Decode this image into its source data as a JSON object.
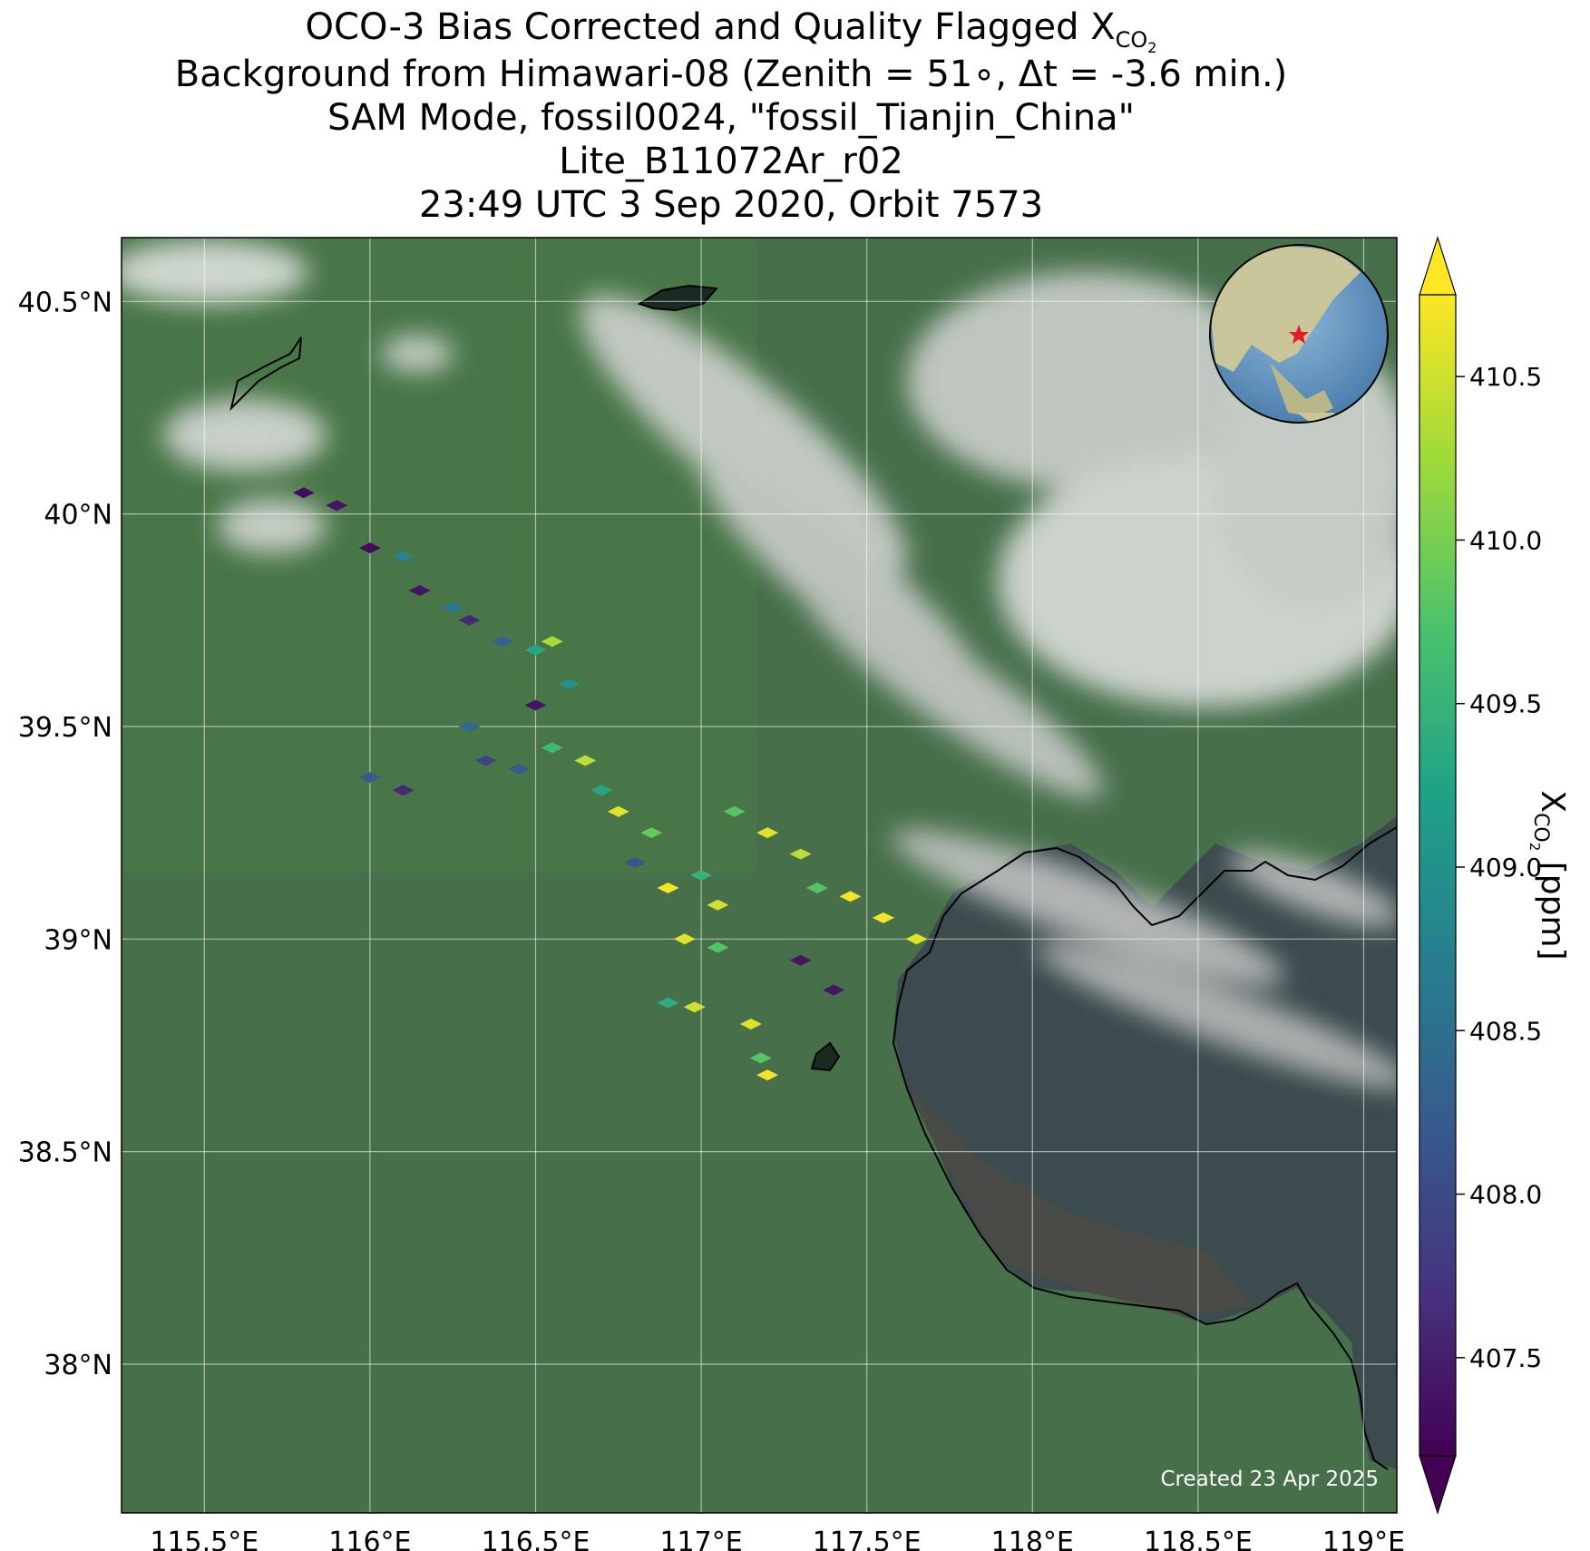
{
  "title": {
    "line1_main": "OCO-3 Bias Corrected and Quality Flagged X",
    "line1_sub": "CO",
    "line1_sub2": "2",
    "line2": "Background from Himawari-08 (Zenith = 51∘, Δt = -3.6 min.)",
    "line3": "SAM Mode, fossil0024, \"fossil_Tianjin_China\"",
    "line4": "Lite_B11072Ar_r02",
    "line5": "23:49 UTC 3 Sep 2020, Orbit 7573"
  },
  "map": {
    "lon_range": [
      115.25,
      119.1
    ],
    "lat_range": [
      37.65,
      40.65
    ],
    "x_ticks": [
      "115.5°E",
      "116°E",
      "116.5°E",
      "117°E",
      "117.5°E",
      "118°E",
      "118.5°E",
      "119°E"
    ],
    "x_tick_values": [
      115.5,
      116.0,
      116.5,
      117.0,
      117.5,
      118.0,
      118.5,
      119.0
    ],
    "y_ticks": [
      "40.5°N",
      "40°N",
      "39.5°N",
      "39°N",
      "38.5°N",
      "38°N"
    ],
    "y_tick_values": [
      40.5,
      40.0,
      39.5,
      39.0,
      38.5,
      38.0
    ],
    "credit": "Created 23 Apr 2025",
    "inset_marker": "red-star",
    "colors": {
      "land": "#3f6a3a",
      "sea": "#3a4a4c",
      "cloud": "#e6e6e6",
      "coast": "#000000"
    }
  },
  "colorbar": {
    "label_main": "X",
    "label_sub": "CO",
    "label_sub2": "2",
    "label_unit": " [ppm]",
    "range": [
      407.2,
      410.75
    ],
    "ticks": [
      "407.5",
      "408.0",
      "408.5",
      "409.0",
      "409.5",
      "410.0",
      "410.5"
    ],
    "tick_values": [
      407.5,
      408.0,
      408.5,
      409.0,
      409.5,
      410.0,
      410.5
    ],
    "colormap": "viridis",
    "extend": "both"
  },
  "chart_data": {
    "type": "scatter",
    "title": "OCO-3 Bias Corrected and Quality Flagged XCO2",
    "xlabel": "",
    "ylabel": "",
    "xlim": [
      115.25,
      119.1
    ],
    "ylim": [
      37.65,
      40.65
    ],
    "color_label": "XCO2 [ppm]",
    "color_range": [
      407.2,
      410.75
    ],
    "points": [
      {
        "lon": 115.8,
        "lat": 40.05,
        "xco2": 407.3
      },
      {
        "lon": 115.9,
        "lat": 40.02,
        "xco2": 407.4
      },
      {
        "lon": 116.0,
        "lat": 39.92,
        "xco2": 407.3
      },
      {
        "lon": 116.1,
        "lat": 39.9,
        "xco2": 408.8
      },
      {
        "lon": 116.15,
        "lat": 39.82,
        "xco2": 407.4
      },
      {
        "lon": 116.25,
        "lat": 39.78,
        "xco2": 408.6
      },
      {
        "lon": 116.3,
        "lat": 39.75,
        "xco2": 407.6
      },
      {
        "lon": 116.4,
        "lat": 39.7,
        "xco2": 408.3
      },
      {
        "lon": 116.5,
        "lat": 39.68,
        "xco2": 409.3
      },
      {
        "lon": 116.55,
        "lat": 39.7,
        "xco2": 410.3
      },
      {
        "lon": 116.6,
        "lat": 39.6,
        "xco2": 409.0
      },
      {
        "lon": 116.5,
        "lat": 39.55,
        "xco2": 407.4
      },
      {
        "lon": 116.3,
        "lat": 39.5,
        "xco2": 408.4
      },
      {
        "lon": 116.35,
        "lat": 39.42,
        "xco2": 407.9
      },
      {
        "lon": 116.45,
        "lat": 39.4,
        "xco2": 408.2
      },
      {
        "lon": 116.55,
        "lat": 39.45,
        "xco2": 409.6
      },
      {
        "lon": 116.65,
        "lat": 39.42,
        "xco2": 410.4
      },
      {
        "lon": 116.7,
        "lat": 39.35,
        "xco2": 409.3
      },
      {
        "lon": 116.75,
        "lat": 39.3,
        "xco2": 410.6
      },
      {
        "lon": 116.85,
        "lat": 39.25,
        "xco2": 409.9
      },
      {
        "lon": 116.8,
        "lat": 39.18,
        "xco2": 408.1
      },
      {
        "lon": 116.9,
        "lat": 39.12,
        "xco2": 410.7
      },
      {
        "lon": 117.0,
        "lat": 39.15,
        "xco2": 409.5
      },
      {
        "lon": 117.05,
        "lat": 39.08,
        "xco2": 410.5
      },
      {
        "lon": 116.95,
        "lat": 39.0,
        "xco2": 410.6
      },
      {
        "lon": 117.05,
        "lat": 38.98,
        "xco2": 409.8
      },
      {
        "lon": 117.1,
        "lat": 39.3,
        "xco2": 409.8
      },
      {
        "lon": 117.2,
        "lat": 39.25,
        "xco2": 410.6
      },
      {
        "lon": 117.3,
        "lat": 39.2,
        "xco2": 410.4
      },
      {
        "lon": 117.35,
        "lat": 39.12,
        "xco2": 409.8
      },
      {
        "lon": 117.45,
        "lat": 39.1,
        "xco2": 410.7
      },
      {
        "lon": 117.55,
        "lat": 39.05,
        "xco2": 410.7
      },
      {
        "lon": 117.65,
        "lat": 39.0,
        "xco2": 410.6
      },
      {
        "lon": 117.3,
        "lat": 38.95,
        "xco2": 407.4
      },
      {
        "lon": 117.4,
        "lat": 38.88,
        "xco2": 407.4
      },
      {
        "lon": 116.9,
        "lat": 38.85,
        "xco2": 409.4
      },
      {
        "lon": 116.98,
        "lat": 38.84,
        "xco2": 410.5
      },
      {
        "lon": 117.15,
        "lat": 38.8,
        "xco2": 410.6
      },
      {
        "lon": 117.18,
        "lat": 38.72,
        "xco2": 409.8
      },
      {
        "lon": 117.2,
        "lat": 38.68,
        "xco2": 410.7
      },
      {
        "lon": 116.0,
        "lat": 39.38,
        "xco2": 408.2
      },
      {
        "lon": 116.1,
        "lat": 39.35,
        "xco2": 407.6
      }
    ]
  }
}
